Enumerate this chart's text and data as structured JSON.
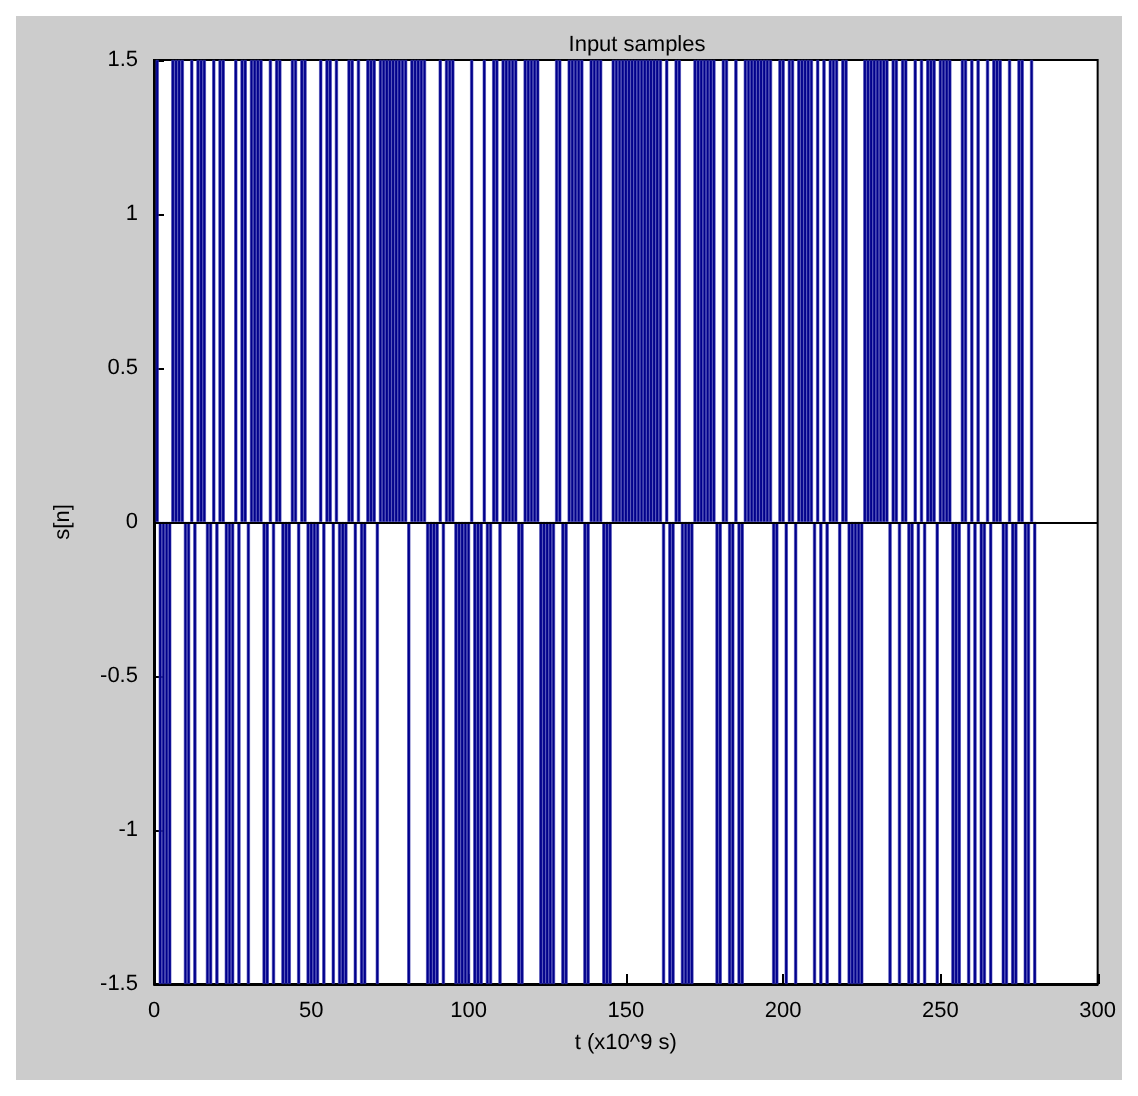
{
  "chart_data": {
    "type": "bar",
    "title": "Input samples",
    "xlabel": "t (x10^9 s)",
    "ylabel": "s[n]",
    "x": [
      1,
      2,
      3,
      4,
      5,
      6,
      7,
      8,
      9,
      10,
      11,
      12,
      13,
      14,
      15,
      16,
      17,
      18,
      19,
      20,
      21,
      22,
      23,
      24,
      25,
      26,
      27,
      28,
      29,
      30,
      31,
      32,
      33,
      34,
      35,
      36,
      37,
      38,
      39,
      40,
      41,
      42,
      43,
      44,
      45,
      46,
      47,
      48,
      49,
      50,
      51,
      52,
      53,
      54,
      55,
      56,
      57,
      58,
      59,
      60,
      61,
      62,
      63,
      64,
      65,
      66,
      67,
      68,
      69,
      70,
      71,
      72,
      73,
      74,
      75,
      76,
      77,
      78,
      79,
      80,
      81,
      82,
      83,
      84,
      85,
      86,
      87,
      88,
      89,
      90,
      91,
      92,
      93,
      94,
      95,
      96,
      97,
      98,
      99,
      100,
      101,
      102,
      103,
      104,
      105,
      106,
      107,
      108,
      109,
      110,
      111,
      112,
      113,
      114,
      115,
      116,
      117,
      118,
      119,
      120,
      121,
      122,
      123,
      124,
      125,
      126,
      127,
      128,
      129,
      130,
      131,
      132,
      133,
      134,
      135,
      136,
      137,
      138,
      139,
      140,
      141,
      142,
      143,
      144,
      145,
      146,
      147,
      148,
      149,
      150,
      151,
      152,
      153,
      154,
      155,
      156,
      157,
      158,
      159,
      160,
      161,
      162,
      163,
      164,
      165,
      166,
      167,
      168,
      169,
      170,
      171,
      172,
      173,
      174,
      175,
      176,
      177,
      178,
      179,
      180,
      181,
      182,
      183,
      184,
      185,
      186,
      187,
      188,
      189,
      190,
      191,
      192,
      193,
      194,
      195,
      196,
      197,
      198,
      199,
      200,
      201,
      202,
      203,
      204,
      205,
      206,
      207,
      208,
      209,
      210,
      211,
      212,
      213,
      214,
      215,
      216,
      217,
      218,
      219,
      220,
      221,
      222,
      223,
      224,
      225,
      226,
      227,
      228,
      229,
      230,
      231,
      232,
      233,
      234,
      235,
      236,
      237,
      238,
      239,
      240,
      241,
      242,
      243,
      244,
      245,
      246,
      247,
      248,
      249,
      250,
      251,
      252,
      253,
      254,
      255,
      256,
      257,
      258,
      259,
      260,
      261,
      262,
      263,
      264,
      265,
      266,
      267,
      268,
      269,
      270,
      271,
      272,
      273,
      274,
      275,
      276,
      277,
      278,
      279,
      280
    ],
    "values": [
      1.5,
      -1.5,
      -1.5,
      -1.5,
      -1.5,
      1.5,
      1.5,
      1.5,
      1.5,
      -1.5,
      -1.5,
      1.5,
      -1.5,
      1.5,
      1.5,
      1.5,
      -1.5,
      -1.5,
      1.5,
      -1.5,
      1.5,
      1.5,
      -1.5,
      -1.5,
      -1.5,
      1.5,
      -1.5,
      1.5,
      1.5,
      -1.5,
      1.5,
      1.5,
      1.5,
      1.5,
      -1.5,
      -1.5,
      1.5,
      -1.5,
      1.5,
      1.5,
      -1.5,
      -1.5,
      -1.5,
      1.5,
      1.5,
      -1.5,
      1.5,
      1.5,
      -1.5,
      -1.5,
      -1.5,
      -1.5,
      1.5,
      -1.5,
      1.5,
      1.5,
      -1.5,
      1.5,
      -1.5,
      -1.5,
      -1.5,
      1.5,
      1.5,
      -1.5,
      1.5,
      -1.5,
      -1.5,
      1.5,
      1.5,
      1.5,
      -1.5,
      1.5,
      1.5,
      1.5,
      1.5,
      1.5,
      1.5,
      1.5,
      1.5,
      1.5,
      -1.5,
      1.5,
      1.5,
      1.5,
      1.5,
      1.5,
      -1.5,
      -1.5,
      -1.5,
      -1.5,
      1.5,
      -1.5,
      1.5,
      1.5,
      1.5,
      -1.5,
      -1.5,
      -1.5,
      -1.5,
      -1.5,
      1.5,
      -1.5,
      -1.5,
      -1.5,
      1.5,
      -1.5,
      -1.5,
      1.5,
      1.5,
      -1.5,
      1.5,
      1.5,
      1.5,
      1.5,
      1.5,
      -1.5,
      -1.5,
      1.5,
      1.5,
      1.5,
      1.5,
      1.5,
      -1.5,
      -1.5,
      -1.5,
      -1.5,
      -1.5,
      1.5,
      1.5,
      -1.5,
      -1.5,
      1.5,
      1.5,
      1.5,
      1.5,
      1.5,
      -1.5,
      -1.5,
      1.5,
      1.5,
      1.5,
      1.5,
      -1.5,
      -1.5,
      -1.5,
      1.5,
      1.5,
      1.5,
      1.5,
      1.5,
      1.5,
      1.5,
      1.5,
      1.5,
      1.5,
      1.5,
      1.5,
      1.5,
      1.5,
      1.5,
      1.5,
      -1.5,
      1.5,
      -1.5,
      -1.5,
      1.5,
      1.5,
      -1.5,
      -1.5,
      -1.5,
      -1.5,
      1.5,
      1.5,
      1.5,
      1.5,
      1.5,
      1.5,
      1.5,
      -1.5,
      -1.5,
      1.5,
      1.5,
      -1.5,
      -1.5,
      1.5,
      -1.5,
      -1.5,
      1.5,
      1.5,
      1.5,
      1.5,
      1.5,
      1.5,
      1.5,
      1.5,
      1.5,
      -1.5,
      -1.5,
      1.5,
      1.5,
      -1.5,
      1.5,
      1.5,
      -1.5,
      1.5,
      1.5,
      1.5,
      1.5,
      1.5,
      -1.5,
      1.5,
      -1.5,
      1.5,
      -1.5,
      1.5,
      1.5,
      1.5,
      -1.5,
      1.5,
      1.5,
      -1.5,
      -1.5,
      -1.5,
      -1.5,
      -1.5,
      1.5,
      1.5,
      1.5,
      1.5,
      1.5,
      1.5,
      1.5,
      1.5,
      -1.5,
      1.5,
      1.5,
      -1.5,
      1.5,
      1.5,
      -1.5,
      -1.5,
      1.5,
      -1.5,
      1.5,
      -1.5,
      1.5,
      1.5,
      1.5,
      -1.5,
      1.5,
      1.5,
      1.5,
      1.5,
      -1.5,
      -1.5,
      -1.5,
      1.5,
      1.5,
      -1.5,
      1.5,
      -1.5,
      1.5,
      -1.5,
      -1.5,
      1.5,
      -1.5,
      1.5,
      1.5,
      1.5,
      -1.5,
      -1.5,
      1.5,
      -1.5,
      -1.5,
      1.5,
      1.5,
      -1.5,
      -1.5,
      1.5,
      -1.5
    ],
    "color": "#00008b",
    "xlim": [
      0,
      300
    ],
    "xticks": [
      0,
      50,
      100,
      150,
      200,
      250,
      300
    ],
    "ylim": [
      -1.5,
      1.5
    ],
    "yticks": [
      -1.5,
      -1,
      -0.5,
      0,
      0.5,
      1,
      1.5
    ],
    "ref_lines": [
      {
        "axis": "y",
        "value": 0,
        "color": "#000000"
      }
    ],
    "grid": false
  }
}
